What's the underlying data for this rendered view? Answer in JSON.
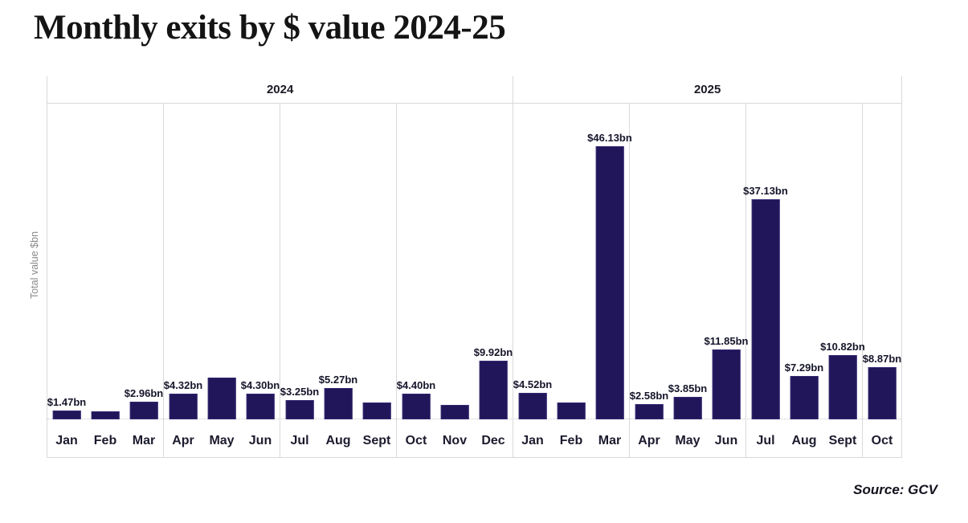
{
  "title": "Monthly exits by $ value 2024-25",
  "chart_data": {
    "type": "bar",
    "title": "Monthly exits by $ value 2024-25",
    "xlabel": "",
    "ylabel": "Total value $bn",
    "ylim": [
      0,
      53.3
    ],
    "grid": "quarterly vertical dividers, no y-axis ticks",
    "legend": "none",
    "source": "Source: GCV",
    "bar_color": "#201659",
    "grid_color": "#d9d9d9",
    "years": [
      {
        "label": "2024",
        "month_count": 12
      },
      {
        "label": "2025",
        "month_count": 10
      }
    ],
    "bars": [
      {
        "year": "2024",
        "month": "Jan",
        "value": 1.47,
        "label": "$1.47bn"
      },
      {
        "year": "2024",
        "month": "Feb",
        "value": 1.35,
        "label": ""
      },
      {
        "year": "2024",
        "month": "Mar",
        "value": 2.96,
        "label": "$2.96bn"
      },
      {
        "year": "2024",
        "month": "Apr",
        "value": 4.32,
        "label": "$4.32bn"
      },
      {
        "year": "2024",
        "month": "May",
        "value": 7.0,
        "label": ""
      },
      {
        "year": "2024",
        "month": "Jun",
        "value": 4.3,
        "label": "$4.30bn"
      },
      {
        "year": "2024",
        "month": "Jul",
        "value": 3.25,
        "label": "$3.25bn"
      },
      {
        "year": "2024",
        "month": "Aug",
        "value": 5.27,
        "label": "$5.27bn"
      },
      {
        "year": "2024",
        "month": "Sept",
        "value": 2.8,
        "label": ""
      },
      {
        "year": "2024",
        "month": "Oct",
        "value": 4.4,
        "label": "$4.40bn"
      },
      {
        "year": "2024",
        "month": "Nov",
        "value": 2.45,
        "label": ""
      },
      {
        "year": "2024",
        "month": "Dec",
        "value": 9.92,
        "label": "$9.92bn"
      },
      {
        "year": "2025",
        "month": "Jan",
        "value": 4.52,
        "label": "$4.52bn"
      },
      {
        "year": "2025",
        "month": "Feb",
        "value": 2.9,
        "label": ""
      },
      {
        "year": "2025",
        "month": "Mar",
        "value": 46.13,
        "label": "$46.13bn"
      },
      {
        "year": "2025",
        "month": "Apr",
        "value": 2.58,
        "label": "$2.58bn"
      },
      {
        "year": "2025",
        "month": "May",
        "value": 3.85,
        "label": "$3.85bn"
      },
      {
        "year": "2025",
        "month": "Jun",
        "value": 11.85,
        "label": "$11.85bn"
      },
      {
        "year": "2025",
        "month": "Jul",
        "value": 37.13,
        "label": "$37.13bn"
      },
      {
        "year": "2025",
        "month": "Aug",
        "value": 7.29,
        "label": "$7.29bn"
      },
      {
        "year": "2025",
        "month": "Sept",
        "value": 10.82,
        "label": "$10.82bn"
      },
      {
        "year": "2025",
        "month": "Oct",
        "value": 8.87,
        "label": "$8.87bn"
      }
    ]
  }
}
